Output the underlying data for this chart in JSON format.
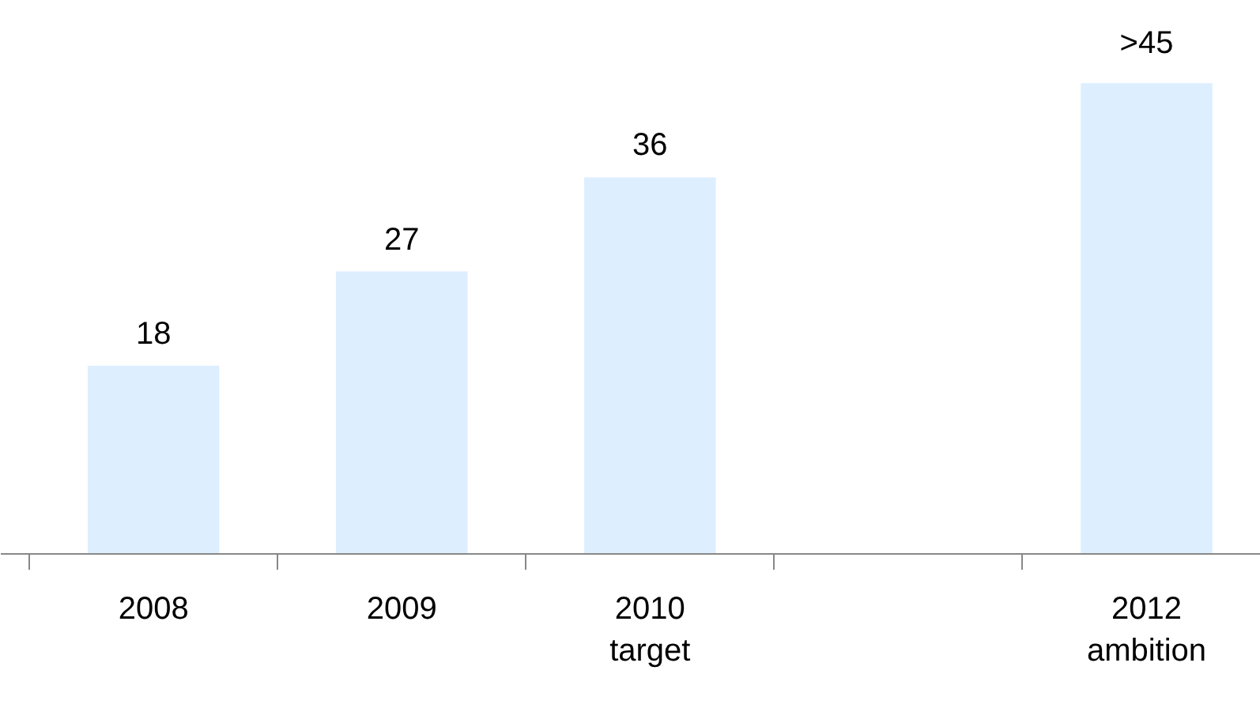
{
  "chart_data": {
    "type": "bar",
    "categories": [
      "2008",
      "2009",
      "2010\ntarget",
      null,
      "2012\nambition"
    ],
    "values": [
      18,
      27,
      36,
      null,
      45
    ],
    "value_labels": [
      "18",
      "27",
      "36",
      null,
      ">45"
    ],
    "color": "#ddeeff",
    "grid": false
  }
}
